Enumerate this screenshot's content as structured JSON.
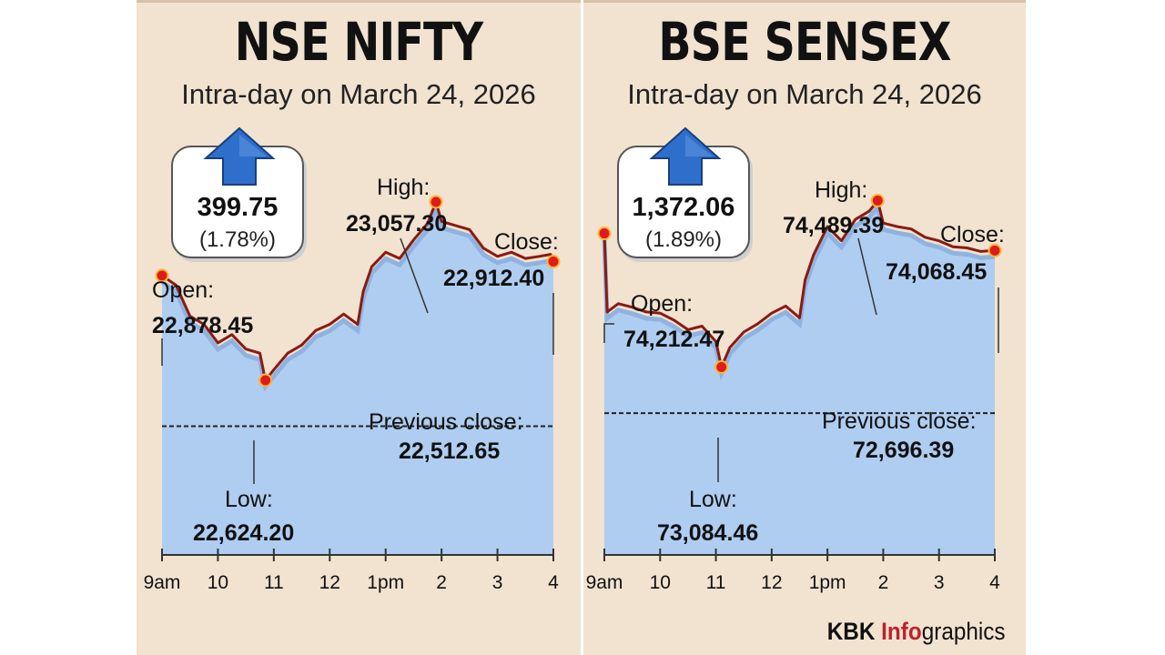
{
  "charts": [
    {
      "title": "NSE NIFTY",
      "subtitle": "Intra-day on March 24, 2026",
      "change": {
        "value": "399.75",
        "percent": "(1.78%)",
        "direction": "up"
      },
      "annotations": {
        "open": {
          "label": "Open:",
          "value": "22,878.45"
        },
        "high": {
          "label": "High:",
          "value": "23,057.30"
        },
        "close": {
          "label": "Close:",
          "value": "22,912.40"
        },
        "low": {
          "label": "Low:",
          "value": "22,624.20"
        },
        "previous_close": {
          "label": "Previous close:",
          "value": "22,512.65"
        }
      },
      "x_ticks": [
        "9am",
        "10",
        "11",
        "12",
        "1pm",
        "2",
        "3",
        "4"
      ]
    },
    {
      "title": "BSE SENSEX",
      "subtitle": "Intra-day on March 24, 2026",
      "change": {
        "value": "1,372.06",
        "percent": "(1.89%)",
        "direction": "up"
      },
      "annotations": {
        "open": {
          "label": "Open:",
          "value": "74,212.47"
        },
        "high": {
          "label": "High:",
          "value": "74,489.39"
        },
        "close": {
          "label": "Close:",
          "value": "74,068.45"
        },
        "low": {
          "label": "Low:",
          "value": "73,084.46"
        },
        "previous_close": {
          "label": "Previous close:",
          "value": "72,696.39"
        }
      },
      "x_ticks": [
        "9am",
        "10",
        "11",
        "12",
        "1pm",
        "2",
        "3",
        "4"
      ]
    }
  ],
  "chart_data": [
    {
      "type": "line",
      "title": "NSE NIFTY",
      "subtitle": "Intra-day on March 24, 2026",
      "xlabel": "",
      "ylabel": "",
      "x_domain_hours": [
        9,
        16
      ],
      "ylim": [
        22200,
        23150
      ],
      "reference_line": 22512.65,
      "x": [
        9.0,
        9.25,
        9.5,
        9.75,
        10.0,
        10.25,
        10.5,
        10.75,
        10.85,
        11.0,
        11.25,
        11.5,
        11.75,
        12.0,
        12.25,
        12.5,
        12.6,
        12.75,
        13.0,
        13.25,
        13.5,
        13.75,
        13.9,
        14.0,
        14.25,
        14.5,
        14.75,
        15.0,
        15.25,
        15.5,
        15.75,
        15.95,
        16.0
      ],
      "y": [
        22878.45,
        22855,
        22780,
        22760,
        22715,
        22735,
        22700,
        22690,
        22624.2,
        22650,
        22690,
        22710,
        22745,
        22760,
        22785,
        22760,
        22840,
        22900,
        22935,
        22920,
        22965,
        23005,
        23057.3,
        23010,
        23000,
        22990,
        22945,
        22925,
        22935,
        22920,
        22925,
        22930,
        22912.4
      ],
      "markers": {
        "open": [
          9.0,
          22878.45
        ],
        "low": [
          10.85,
          22624.2
        ],
        "high": [
          13.9,
          23057.3
        ],
        "close": [
          16.0,
          22912.4
        ]
      }
    },
    {
      "type": "line",
      "title": "BSE SENSEX",
      "subtitle": "Intra-day on March 24, 2026",
      "xlabel": "",
      "ylabel": "",
      "x_domain_hours": [
        9,
        16
      ],
      "ylim": [
        71500,
        74800
      ],
      "reference_line": 72696.39,
      "x": [
        9.0,
        9.05,
        9.25,
        9.5,
        9.75,
        10.0,
        10.25,
        10.5,
        10.75,
        11.0,
        11.1,
        11.25,
        11.5,
        11.75,
        12.0,
        12.25,
        12.5,
        12.6,
        12.75,
        13.0,
        13.25,
        13.5,
        13.75,
        13.9,
        14.0,
        14.25,
        14.5,
        14.75,
        15.0,
        15.25,
        15.5,
        15.75,
        16.0
      ],
      "y": [
        74212.47,
        73550,
        73620,
        73590,
        73550,
        73540,
        73480,
        73400,
        73430,
        73300,
        73084.46,
        73250,
        73380,
        73450,
        73540,
        73600,
        73500,
        73820,
        74030,
        74270,
        74150,
        74330,
        74400,
        74489.39,
        74300,
        74270,
        74250,
        74180,
        74150,
        74100,
        74090,
        74060,
        74068.45
      ],
      "markers": {
        "open": [
          9.0,
          74212.47
        ],
        "low": [
          11.1,
          73084.46
        ],
        "high": [
          13.9,
          74489.39
        ],
        "close": [
          16.0,
          74068.45
        ]
      }
    }
  ],
  "footer": {
    "brand": "KBK",
    "accent": "Info",
    "suffix": "graphics"
  },
  "colors": {
    "background": "#f1e3d0",
    "area": "#aecdf0",
    "line": "#8b1a12",
    "marker": "#e01b1b",
    "arrow": "#2f6fcc",
    "accent": "#c0202a"
  }
}
